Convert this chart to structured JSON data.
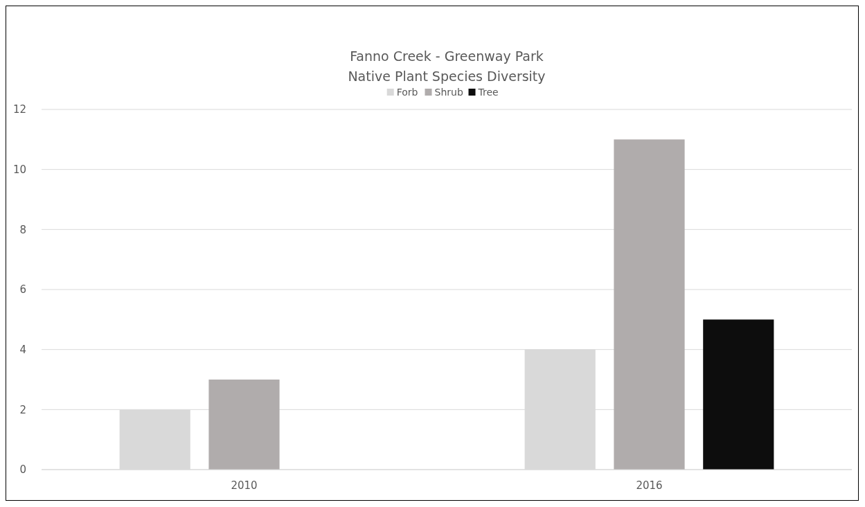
{
  "chart_data": {
    "type": "bar",
    "title": "Fanno Creek - Greenway Park",
    "subtitle": "Native Plant Species Diversity",
    "categories": [
      "2010",
      "2016"
    ],
    "series": [
      {
        "name": "Forb",
        "color": "#d9d9d9",
        "values": [
          2,
          4
        ]
      },
      {
        "name": "Shrub",
        "color": "#b0acac",
        "values": [
          3,
          11
        ]
      },
      {
        "name": "Tree",
        "color": "#0d0d0d",
        "values": [
          null,
          5
        ]
      }
    ],
    "ylim": [
      0,
      12
    ],
    "yticks": [
      0,
      2,
      4,
      6,
      8,
      10,
      12
    ],
    "grid": "y",
    "legend": "top"
  }
}
